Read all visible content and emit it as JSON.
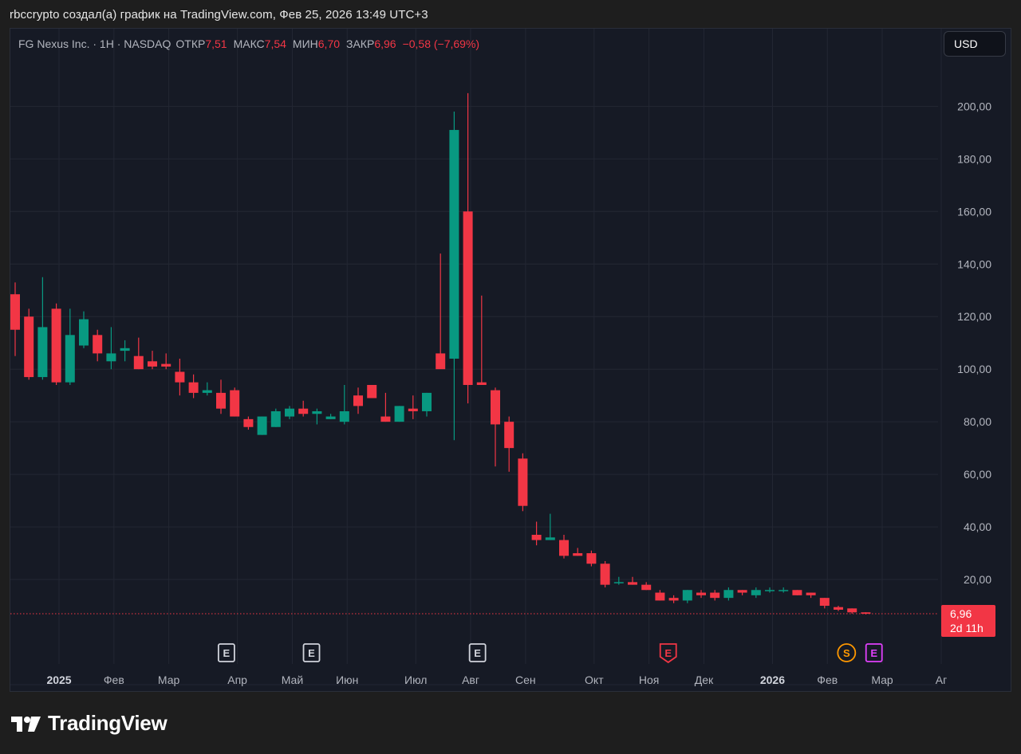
{
  "caption": "rbccrypto создал(а) график на TradingView.com, Фев 25, 2026 13:49 UTC+3",
  "legend": {
    "symbol": "FG Nexus Inc. · 1H · NASDAQ",
    "open_label": "ОТКР",
    "open_value": "7,51",
    "high_label": "МАКС",
    "high_value": "7,54",
    "low_label": "МИН",
    "low_value": "6,70",
    "close_label": "ЗАКР",
    "close_value": "6,96",
    "change": "−0,58 (−7,69%)"
  },
  "currency_button": "USD",
  "price_tag": {
    "value": "6,96",
    "countdown": "2d 11h"
  },
  "brand": "TradingView",
  "colors": {
    "up": "#089981",
    "down": "#f23645",
    "background": "#161a25",
    "grid": "#232733",
    "axis_text": "#b2b5be"
  },
  "chart_data": {
    "type": "candlestick",
    "title": "FG Nexus Inc. · 1H · NASDAQ",
    "last_price": 6.96,
    "ylim": [
      -10,
      218
    ],
    "y_ticks": [
      {
        "value": 200,
        "label": "200,00"
      },
      {
        "value": 180,
        "label": "180,00"
      },
      {
        "value": 160,
        "label": "160,00"
      },
      {
        "value": 140,
        "label": "140,00"
      },
      {
        "value": 120,
        "label": "120,00"
      },
      {
        "value": 100,
        "label": "100,00"
      },
      {
        "value": 80,
        "label": "80,00"
      },
      {
        "value": 60,
        "label": "60,00"
      },
      {
        "value": 40,
        "label": "40,00"
      },
      {
        "value": 20,
        "label": "20,00"
      }
    ],
    "x_range": [
      0,
      68
    ],
    "x_ticks": [
      {
        "pos": 3.2,
        "label": "2025",
        "bold": true
      },
      {
        "pos": 7.2,
        "label": "Фев"
      },
      {
        "pos": 11.2,
        "label": "Мар"
      },
      {
        "pos": 16.2,
        "label": "Апр"
      },
      {
        "pos": 20.2,
        "label": "Май"
      },
      {
        "pos": 24.2,
        "label": "Июн"
      },
      {
        "pos": 29.2,
        "label": "Июл"
      },
      {
        "pos": 33.2,
        "label": "Авг"
      },
      {
        "pos": 37.2,
        "label": "Сен"
      },
      {
        "pos": 42.2,
        "label": "Окт"
      },
      {
        "pos": 46.2,
        "label": "Ноя"
      },
      {
        "pos": 50.2,
        "label": "Дек"
      },
      {
        "pos": 55.2,
        "label": "2026",
        "bold": true
      },
      {
        "pos": 59.2,
        "label": "Фев"
      },
      {
        "pos": 63.2,
        "label": "Мар"
      },
      {
        "pos": 67.5,
        "label": "Аг"
      }
    ],
    "candles": [
      {
        "o": 128.5,
        "h": 133,
        "l": 105,
        "c": 115
      },
      {
        "o": 120,
        "h": 123,
        "l": 96,
        "c": 97
      },
      {
        "o": 97,
        "h": 135,
        "l": 96,
        "c": 116
      },
      {
        "o": 123,
        "h": 125,
        "l": 94,
        "c": 95
      },
      {
        "o": 95,
        "h": 123,
        "l": 94,
        "c": 113
      },
      {
        "o": 109,
        "h": 122,
        "l": 108,
        "c": 119
      },
      {
        "o": 113,
        "h": 115,
        "l": 103,
        "c": 106
      },
      {
        "o": 103,
        "h": 116,
        "l": 100,
        "c": 106
      },
      {
        "o": 107,
        "h": 111,
        "l": 103,
        "c": 108
      },
      {
        "o": 105,
        "h": 112,
        "l": 100,
        "c": 100
      },
      {
        "o": 103,
        "h": 107,
        "l": 100,
        "c": 101
      },
      {
        "o": 102,
        "h": 106,
        "l": 100,
        "c": 101
      },
      {
        "o": 99,
        "h": 104,
        "l": 90,
        "c": 95
      },
      {
        "o": 95,
        "h": 98,
        "l": 89,
        "c": 91
      },
      {
        "o": 91,
        "h": 95,
        "l": 90,
        "c": 92
      },
      {
        "o": 91,
        "h": 96,
        "l": 83,
        "c": 85
      },
      {
        "o": 92,
        "h": 93,
        "l": 82,
        "c": 82
      },
      {
        "o": 81,
        "h": 82,
        "l": 77,
        "c": 78
      },
      {
        "o": 75,
        "h": 82,
        "l": 75,
        "c": 82
      },
      {
        "o": 78,
        "h": 85,
        "l": 78,
        "c": 84
      },
      {
        "o": 82,
        "h": 86,
        "l": 81,
        "c": 85
      },
      {
        "o": 85,
        "h": 88,
        "l": 82,
        "c": 83
      },
      {
        "o": 83,
        "h": 85,
        "l": 79,
        "c": 84
      },
      {
        "o": 81,
        "h": 83,
        "l": 81,
        "c": 82
      },
      {
        "o": 80,
        "h": 94,
        "l": 79,
        "c": 84
      },
      {
        "o": 90,
        "h": 93,
        "l": 83,
        "c": 86
      },
      {
        "o": 94,
        "h": 94,
        "l": 89,
        "c": 89
      },
      {
        "o": 82,
        "h": 91,
        "l": 80,
        "c": 80
      },
      {
        "o": 80,
        "h": 86,
        "l": 80,
        "c": 86
      },
      {
        "o": 85,
        "h": 90,
        "l": 81,
        "c": 84
      },
      {
        "o": 84,
        "h": 91,
        "l": 82,
        "c": 91
      },
      {
        "o": 106,
        "h": 144,
        "l": 101,
        "c": 100
      },
      {
        "o": 104,
        "h": 198,
        "l": 73,
        "c": 191
      },
      {
        "o": 160,
        "h": 205,
        "l": 87,
        "c": 94
      },
      {
        "o": 95,
        "h": 128,
        "l": 94,
        "c": 94
      },
      {
        "o": 92,
        "h": 93,
        "l": 63,
        "c": 79
      },
      {
        "o": 80,
        "h": 82,
        "l": 61,
        "c": 70
      },
      {
        "o": 66,
        "h": 68,
        "l": 46,
        "c": 48
      },
      {
        "o": 37,
        "h": 42,
        "l": 33,
        "c": 35
      },
      {
        "o": 35,
        "h": 45,
        "l": 35,
        "c": 36
      },
      {
        "o": 35,
        "h": 37,
        "l": 28,
        "c": 29
      },
      {
        "o": 30,
        "h": 32,
        "l": 29,
        "c": 29
      },
      {
        "o": 30,
        "h": 31,
        "l": 25,
        "c": 26
      },
      {
        "o": 26,
        "h": 27,
        "l": 17,
        "c": 18
      },
      {
        "o": 19,
        "h": 21,
        "l": 18,
        "c": 19
      },
      {
        "o": 19,
        "h": 21,
        "l": 18,
        "c": 18
      },
      {
        "o": 18,
        "h": 19,
        "l": 16,
        "c": 16
      },
      {
        "o": 15,
        "h": 16,
        "l": 12,
        "c": 12
      },
      {
        "o": 13,
        "h": 14,
        "l": 11,
        "c": 12
      },
      {
        "o": 12,
        "h": 16,
        "l": 11,
        "c": 16
      },
      {
        "o": 15,
        "h": 16,
        "l": 13,
        "c": 14
      },
      {
        "o": 15,
        "h": 16,
        "l": 12,
        "c": 13
      },
      {
        "o": 13,
        "h": 17,
        "l": 12,
        "c": 16
      },
      {
        "o": 16,
        "h": 16,
        "l": 14,
        "c": 15
      },
      {
        "o": 14,
        "h": 17,
        "l": 13,
        "c": 16
      },
      {
        "o": 16,
        "h": 17,
        "l": 15,
        "c": 16
      },
      {
        "o": 16,
        "h": 17,
        "l": 15,
        "c": 16
      },
      {
        "o": 16,
        "h": 16,
        "l": 14,
        "c": 14
      },
      {
        "o": 15,
        "h": 15,
        "l": 13,
        "c": 14
      },
      {
        "o": 13,
        "h": 13,
        "l": 9,
        "c": 10
      },
      {
        "o": 9.5,
        "h": 10,
        "l": 8,
        "c": 8.5
      },
      {
        "o": 9,
        "h": 9,
        "l": 7,
        "c": 7.5
      },
      {
        "o": 7.51,
        "h": 7.54,
        "l": 6.7,
        "c": 6.96
      }
    ],
    "events": [
      {
        "pos": 15.4,
        "label": "E",
        "color": "#d1d4dc"
      },
      {
        "pos": 21.6,
        "label": "E",
        "color": "#d1d4dc"
      },
      {
        "pos": 33.7,
        "label": "E",
        "color": "#d1d4dc"
      },
      {
        "pos": 47.6,
        "label": "E",
        "color": "#f23645"
      },
      {
        "pos": 60.6,
        "label": "S",
        "color": "#ff9800"
      },
      {
        "pos": 62.6,
        "label": "E",
        "color": "#e040fb"
      }
    ]
  }
}
